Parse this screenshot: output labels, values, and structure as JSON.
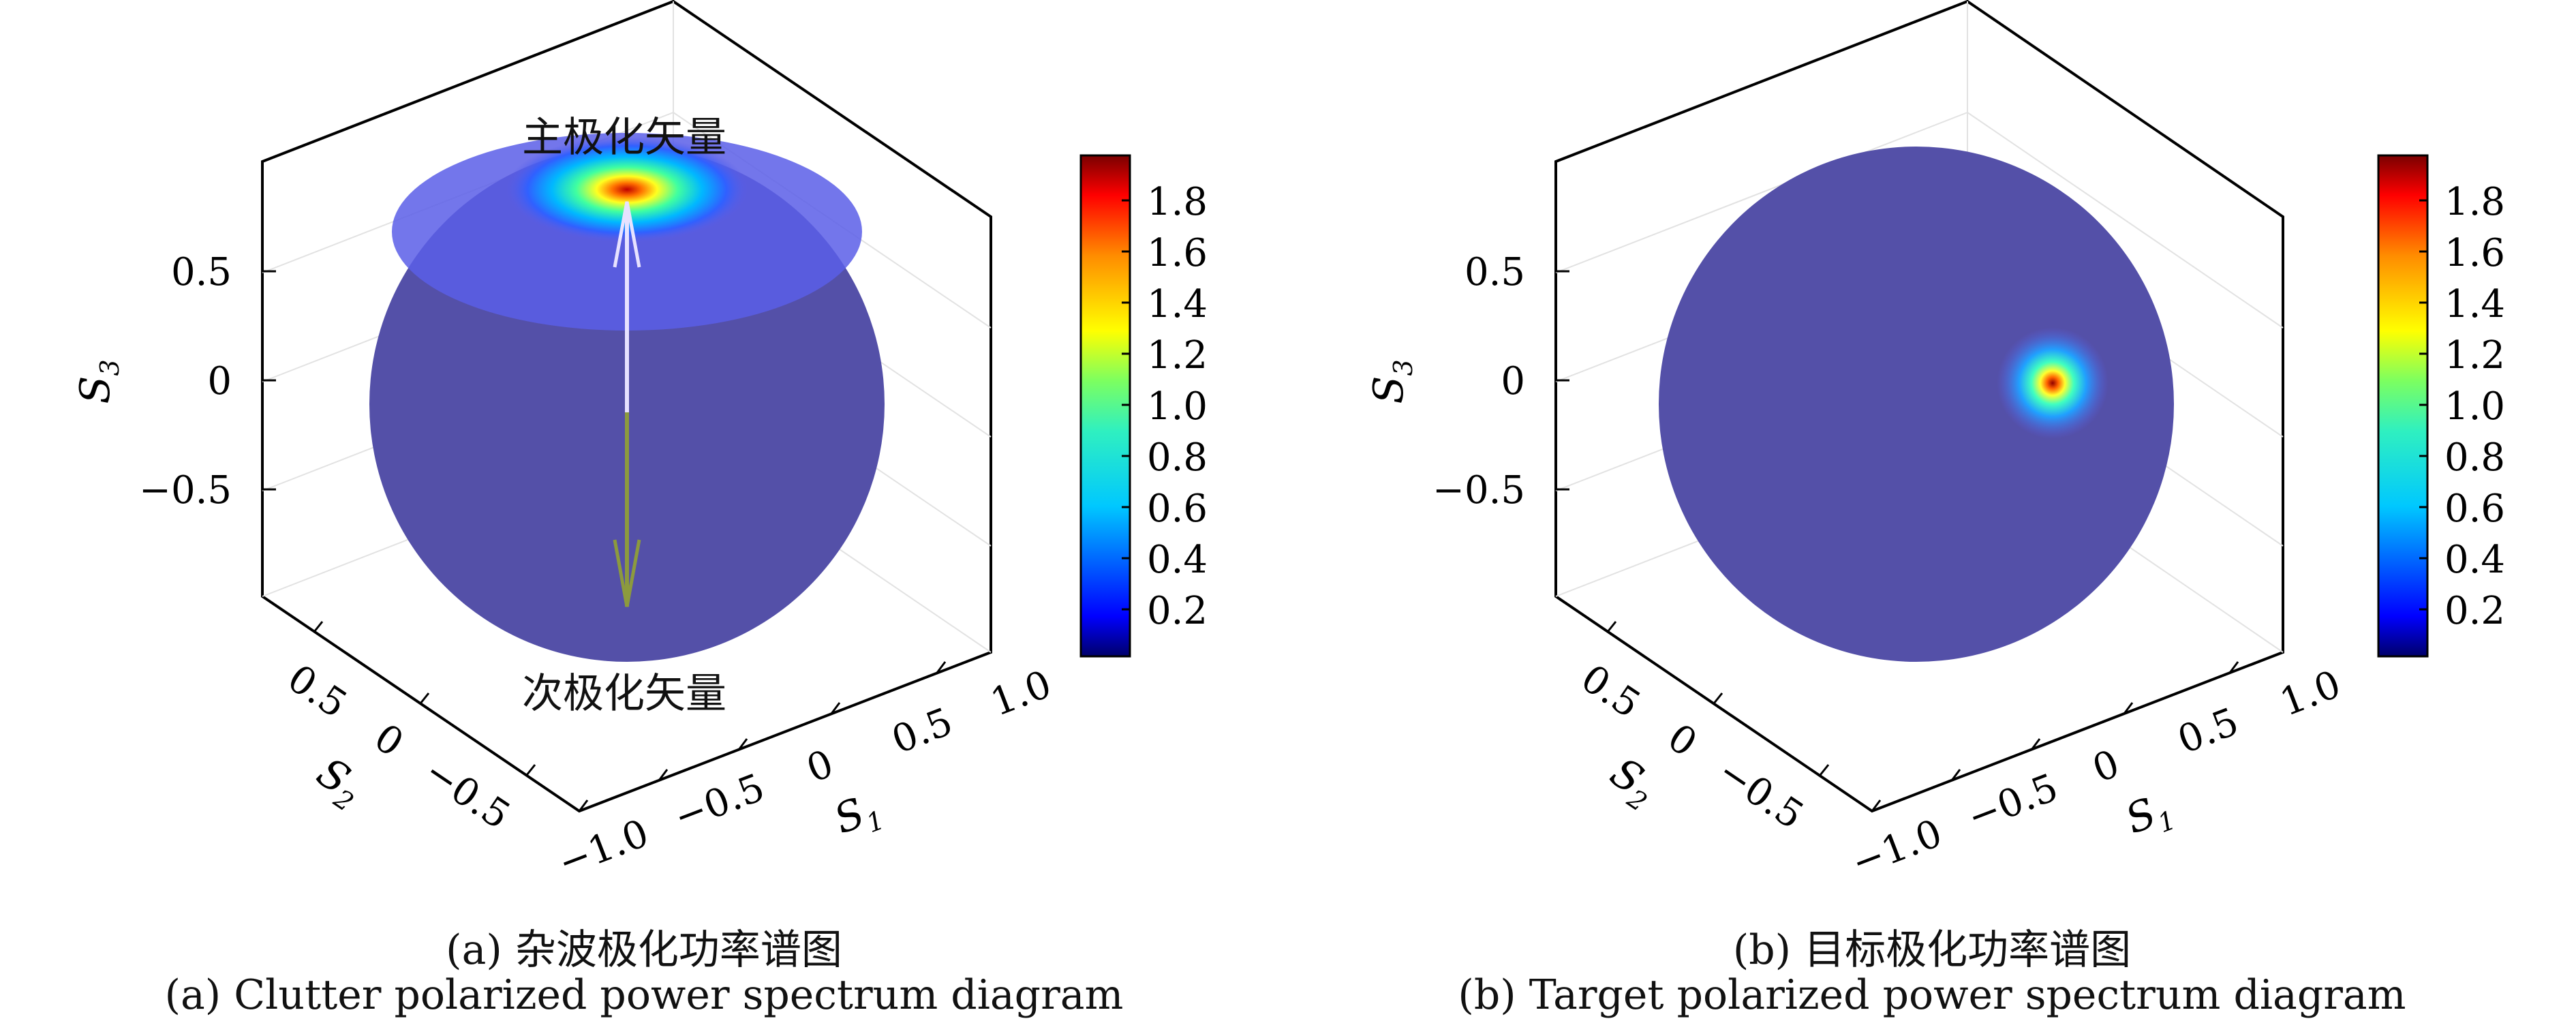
{
  "chart_data": [
    {
      "type": "heatmap",
      "kind": "poincare-sphere",
      "caption_cn": "(a) 杂波极化功率谱图",
      "caption_en": "(a) Clutter polarized power spectrum diagram",
      "axes": {
        "s3_ticks": [
          "0.5",
          "0",
          "−0.5"
        ],
        "s1_ticks": [
          "−1.0",
          "−0.5",
          "0",
          "0.5",
          "1.0"
        ],
        "s2_ticks": [
          "0.5",
          "0",
          "−0.5"
        ],
        "s3_label": "S3",
        "s1_label": "S1",
        "s2_label": "S2"
      },
      "colorbar": {
        "min": 0,
        "max": 1.95,
        "ticks": [
          "1.8",
          "1.6",
          "1.4",
          "1.2",
          "1.0",
          "0.8",
          "0.6",
          "0.4",
          "0.2"
        ]
      },
      "annotations": {
        "top": "主极化矢量",
        "bottom": "次极化矢量"
      },
      "hotspot": {
        "peak_value": 1.95,
        "location": "top (S3 ≈ 0.95)"
      }
    },
    {
      "type": "heatmap",
      "kind": "poincare-sphere",
      "caption_cn": "(b) 目标极化功率谱图",
      "caption_en": "(b) Target polarized power spectrum diagram",
      "axes": {
        "s3_ticks": [
          "0.5",
          "0",
          "−0.5"
        ],
        "s1_ticks": [
          "−1.0",
          "−0.5",
          "0",
          "0.5",
          "1.0"
        ],
        "s2_ticks": [
          "0.5",
          "0",
          "−0.5"
        ],
        "s3_label": "S3",
        "s1_label": "S1",
        "s2_label": "S2"
      },
      "colorbar": {
        "min": 0,
        "max": 1.95,
        "ticks": [
          "1.8",
          "1.6",
          "1.4",
          "1.2",
          "1.0",
          "0.8",
          "0.6",
          "0.4",
          "0.2"
        ]
      },
      "hotspot": {
        "peak_value": 1.95,
        "location": "right (S1 ≈ 0.55, S3 ≈ 0)"
      }
    }
  ],
  "colors": {
    "sphere": "#5450a8",
    "halo": "#5a5ee8",
    "frame": "#000000",
    "arrow_top": "#e7e2ff",
    "arrow_bottom": "#8c9a3e"
  }
}
